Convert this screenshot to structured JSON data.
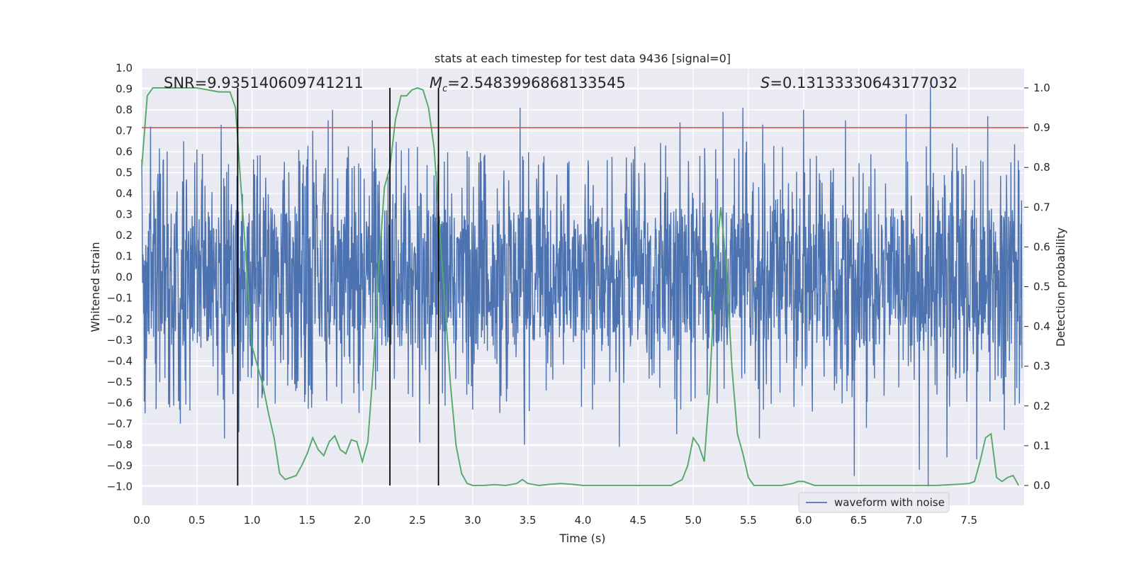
{
  "chart_data": {
    "type": "line",
    "title": "stats at each timestep for test data 9436 [signal=0]",
    "xlabel": "Time (s)",
    "ylabel": "Whitened strain",
    "y2label": "Detection probability",
    "xlim": [
      0.0,
      8.0
    ],
    "ylim": [
      -1.09,
      1.0
    ],
    "y2lim": [
      -0.05,
      1.05
    ],
    "xticks": [
      "0.0",
      "0.5",
      "1.0",
      "1.5",
      "2.0",
      "2.5",
      "3.0",
      "3.5",
      "4.0",
      "4.5",
      "5.0",
      "5.5",
      "6.0",
      "6.5",
      "7.0",
      "7.5"
    ],
    "yticks": [
      "1.0",
      "0.9",
      "0.8",
      "0.7",
      "0.6",
      "0.5",
      "0.4",
      "0.3",
      "0.2",
      "0.1",
      "0.0",
      "−0.1",
      "−0.2",
      "−0.3",
      "−0.4",
      "−0.5",
      "−0.6",
      "−0.7",
      "−0.8",
      "−0.9",
      "−1.0"
    ],
    "y2ticks": [
      "1.0",
      "0.9",
      "0.8",
      "0.7",
      "0.6",
      "0.5",
      "0.4",
      "0.3",
      "0.2",
      "0.1",
      "0.0"
    ],
    "grid": true,
    "legend": {
      "location": "lower-right",
      "entries": [
        "waveform with noise"
      ]
    },
    "annotations": {
      "snr": "SNR=9.935140609741211",
      "mc_symbol": "M",
      "mc_subscript": "c",
      "mc_value": "=2.5483996868133545",
      "s_symbol": "S",
      "s_value": "=0.13133330643177032"
    },
    "threshold_y2": 0.9,
    "vertical_lines_x": [
      0.87,
      2.25,
      2.69
    ],
    "series": [
      {
        "name": "waveform with noise",
        "color": "#4c72b0",
        "style": "noise",
        "core_amplitude": 0.33,
        "spike_peaks": [
          [
            0.08,
            0.72
          ],
          [
            0.72,
            0.73
          ],
          [
            1.55,
            0.7
          ],
          [
            1.69,
            0.75
          ],
          [
            1.73,
            0.8
          ],
          [
            2.09,
            0.75
          ],
          [
            3.43,
            0.81
          ],
          [
            4.88,
            0.74
          ],
          [
            5.27,
            0.79
          ],
          [
            5.45,
            0.81
          ],
          [
            5.63,
            0.73
          ],
          [
            6.0,
            0.8
          ],
          [
            6.38,
            0.75
          ],
          [
            6.93,
            0.78
          ],
          [
            7.15,
            0.91
          ],
          [
            7.67,
            0.77
          ],
          [
            7.88,
            0.55
          ]
        ],
        "spike_troughs": [
          [
            0.03,
            -0.65
          ],
          [
            0.13,
            -0.63
          ],
          [
            0.35,
            -0.7
          ],
          [
            0.75,
            -0.77
          ],
          [
            0.88,
            -0.74
          ],
          [
            2.52,
            -0.79
          ],
          [
            3.47,
            -0.8
          ],
          [
            4.33,
            -0.81
          ],
          [
            4.85,
            -0.75
          ],
          [
            5.6,
            -0.77
          ],
          [
            6.46,
            -0.95
          ],
          [
            6.57,
            -0.72
          ],
          [
            7.05,
            -0.92
          ],
          [
            7.13,
            -1.0
          ],
          [
            7.3,
            -0.86
          ],
          [
            7.57,
            -0.87
          ],
          [
            7.82,
            -0.73
          ]
        ]
      },
      {
        "name": "detection probability",
        "color": "#55a868",
        "axis": "right",
        "x": [
          0.0,
          0.05,
          0.1,
          0.2,
          0.3,
          0.4,
          0.5,
          0.6,
          0.7,
          0.8,
          0.85,
          0.9,
          0.95,
          1.0,
          1.05,
          1.1,
          1.15,
          1.2,
          1.25,
          1.3,
          1.35,
          1.4,
          1.45,
          1.5,
          1.55,
          1.6,
          1.65,
          1.7,
          1.75,
          1.8,
          1.85,
          1.9,
          1.95,
          2.0,
          2.05,
          2.1,
          2.15,
          2.2,
          2.25,
          2.3,
          2.35,
          2.4,
          2.45,
          2.5,
          2.55,
          2.6,
          2.65,
          2.7,
          2.75,
          2.8,
          2.85,
          2.9,
          2.95,
          3.0,
          3.1,
          3.2,
          3.3,
          3.4,
          3.45,
          3.5,
          3.6,
          3.7,
          3.8,
          3.9,
          4.0,
          4.2,
          4.4,
          4.6,
          4.8,
          4.9,
          4.95,
          5.0,
          5.05,
          5.1,
          5.15,
          5.2,
          5.25,
          5.3,
          5.35,
          5.4,
          5.45,
          5.5,
          5.55,
          5.6,
          5.8,
          5.9,
          5.95,
          6.0,
          6.1,
          6.3,
          6.5,
          6.8,
          7.0,
          7.2,
          7.4,
          7.5,
          7.55,
          7.6,
          7.65,
          7.7,
          7.75,
          7.8,
          7.85,
          7.9,
          7.95
        ],
        "y": [
          0.8,
          0.98,
          1.0,
          1.0,
          1.0,
          1.0,
          1.0,
          0.995,
          0.99,
          0.99,
          0.95,
          0.75,
          0.55,
          0.35,
          0.3,
          0.25,
          0.18,
          0.12,
          0.03,
          0.015,
          0.02,
          0.025,
          0.05,
          0.08,
          0.12,
          0.09,
          0.075,
          0.11,
          0.125,
          0.09,
          0.08,
          0.115,
          0.11,
          0.06,
          0.11,
          0.3,
          0.55,
          0.75,
          0.8,
          0.92,
          0.98,
          0.98,
          0.995,
          1.0,
          0.995,
          0.95,
          0.85,
          0.65,
          0.45,
          0.25,
          0.1,
          0.03,
          0.005,
          0.0,
          0.0,
          0.002,
          0.0,
          0.005,
          0.015,
          0.005,
          0.0,
          0.003,
          0.005,
          0.003,
          0.0,
          0.0,
          0.0,
          0.0,
          0.0,
          0.015,
          0.05,
          0.12,
          0.1,
          0.06,
          0.25,
          0.55,
          0.7,
          0.55,
          0.3,
          0.13,
          0.08,
          0.02,
          0.0,
          0.0,
          0.0,
          0.005,
          0.01,
          0.01,
          0.0,
          0.0,
          0.0,
          0.0,
          0.0,
          0.0,
          0.003,
          0.005,
          0.01,
          0.06,
          0.12,
          0.13,
          0.02,
          0.01,
          0.02,
          0.025,
          0.0
        ]
      }
    ],
    "colors": {
      "background": "#eaeaf2",
      "grid": "#ffffff",
      "threshold": "#c44e52",
      "vlines": "#000000"
    }
  }
}
